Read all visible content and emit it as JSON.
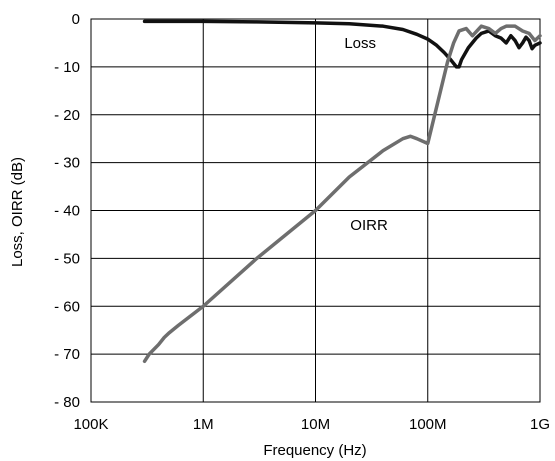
{
  "chart_data": {
    "type": "line",
    "title": "",
    "xlabel": "Frequency (Hz)",
    "ylabel": "Loss, OIRR (dB)",
    "x_scale": "log",
    "xlim": [
      100000,
      1000000000
    ],
    "ylim": [
      -80,
      0
    ],
    "x_ticks": [
      {
        "value": 100000,
        "label": "100K"
      },
      {
        "value": 1000000,
        "label": "1M"
      },
      {
        "value": 10000000,
        "label": "10M"
      },
      {
        "value": 100000000,
        "label": "100M"
      },
      {
        "value": 1000000000,
        "label": "1G"
      }
    ],
    "y_ticks": [
      {
        "value": 0,
        "label": "0"
      },
      {
        "value": -10,
        "label": "- 10"
      },
      {
        "value": -20,
        "label": "- 20"
      },
      {
        "value": -30,
        "label": "- 30"
      },
      {
        "value": -40,
        "label": "- 40"
      },
      {
        "value": -50,
        "label": "- 50"
      },
      {
        "value": -60,
        "label": "- 60"
      },
      {
        "value": -70,
        "label": "- 70"
      },
      {
        "value": -80,
        "label": "- 80"
      }
    ],
    "grid": true,
    "legend": "none",
    "series": [
      {
        "name": "Loss",
        "color": "#111111",
        "points": [
          [
            300000,
            -0.5
          ],
          [
            1000000,
            -0.5
          ],
          [
            3000000,
            -0.6
          ],
          [
            10000000,
            -0.8
          ],
          [
            20000000,
            -1.0
          ],
          [
            40000000,
            -1.5
          ],
          [
            60000000,
            -2.2
          ],
          [
            80000000,
            -3.2
          ],
          [
            100000000,
            -4.2
          ],
          [
            120000000,
            -5.5
          ],
          [
            140000000,
            -7.0
          ],
          [
            160000000,
            -8.5
          ],
          [
            180000000,
            -10.0
          ],
          [
            190000000,
            -10.0
          ],
          [
            200000000,
            -8.5
          ],
          [
            230000000,
            -6.0
          ],
          [
            270000000,
            -4.0
          ],
          [
            300000000,
            -3.0
          ],
          [
            350000000,
            -2.5
          ],
          [
            400000000,
            -3.5
          ],
          [
            450000000,
            -4.0
          ],
          [
            500000000,
            -5.0
          ],
          [
            550000000,
            -3.5
          ],
          [
            600000000,
            -4.5
          ],
          [
            650000000,
            -6.0
          ],
          [
            700000000,
            -5.0
          ],
          [
            750000000,
            -3.8
          ],
          [
            800000000,
            -4.5
          ],
          [
            850000000,
            -6.2
          ],
          [
            900000000,
            -5.5
          ],
          [
            1000000000,
            -5.0
          ]
        ]
      },
      {
        "name": "OIRR",
        "color": "#6e6e6e",
        "points": [
          [
            300000,
            -71.5
          ],
          [
            330000,
            -70.0
          ],
          [
            400000,
            -68.0
          ],
          [
            450000,
            -66.5
          ],
          [
            500000,
            -65.5
          ],
          [
            600000,
            -64.0
          ],
          [
            1000000,
            -60.0
          ],
          [
            3000000,
            -50.0
          ],
          [
            10000000,
            -40.0
          ],
          [
            20000000,
            -33.0
          ],
          [
            40000000,
            -27.5
          ],
          [
            60000000,
            -25.0
          ],
          [
            70000000,
            -24.5
          ],
          [
            80000000,
            -25.0
          ],
          [
            100000000,
            -26.0
          ],
          [
            110000000,
            -22.0
          ],
          [
            130000000,
            -15.0
          ],
          [
            150000000,
            -9.0
          ],
          [
            170000000,
            -5.0
          ],
          [
            190000000,
            -2.5
          ],
          [
            220000000,
            -2.0
          ],
          [
            250000000,
            -3.5
          ],
          [
            300000000,
            -1.5
          ],
          [
            350000000,
            -2.0
          ],
          [
            400000000,
            -3.0
          ],
          [
            450000000,
            -2.0
          ],
          [
            500000000,
            -1.5
          ],
          [
            600000000,
            -1.5
          ],
          [
            700000000,
            -2.5
          ],
          [
            800000000,
            -3.0
          ],
          [
            900000000,
            -4.5
          ],
          [
            1000000000,
            -3.5
          ]
        ]
      }
    ],
    "annotations": [
      {
        "text": "Loss",
        "x": 25000000,
        "y": -5
      },
      {
        "text": "OIRR",
        "x": 30000000,
        "y": -43
      }
    ]
  }
}
